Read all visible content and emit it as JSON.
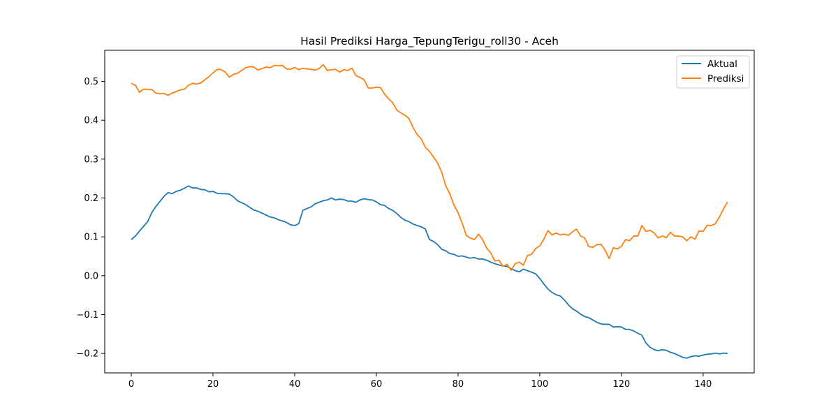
{
  "chart_data": {
    "type": "line",
    "title": "Hasil Prediksi Harga_TepungTerigu_roll30 - Aceh",
    "xlabel": "",
    "ylabel": "",
    "xlim": [
      -6.5,
      152.5
    ],
    "ylim": [
      -0.25,
      0.58
    ],
    "xticks": [
      0,
      20,
      40,
      60,
      80,
      100,
      120,
      140
    ],
    "yticks": [
      -0.2,
      -0.1,
      0.0,
      0.1,
      0.2,
      0.3,
      0.4,
      0.5
    ],
    "ytick_labels": [
      "−0.2",
      "−0.1",
      "0.0",
      "0.1",
      "0.2",
      "0.3",
      "0.4",
      "0.5"
    ],
    "grid": false,
    "legend": "top-right",
    "series": [
      {
        "name": "Aktual",
        "color": "#1f77b4",
        "values": [
          0.093,
          0.102,
          0.115,
          0.127,
          0.139,
          0.162,
          0.178,
          0.191,
          0.204,
          0.214,
          0.211,
          0.217,
          0.22,
          0.225,
          0.231,
          0.226,
          0.226,
          0.222,
          0.221,
          0.216,
          0.217,
          0.212,
          0.211,
          0.211,
          0.21,
          0.203,
          0.193,
          0.188,
          0.183,
          0.176,
          0.169,
          0.166,
          0.161,
          0.156,
          0.151,
          0.149,
          0.144,
          0.141,
          0.137,
          0.131,
          0.129,
          0.134,
          0.168,
          0.173,
          0.177,
          0.185,
          0.189,
          0.193,
          0.195,
          0.2,
          0.195,
          0.197,
          0.196,
          0.192,
          0.192,
          0.189,
          0.195,
          0.198,
          0.196,
          0.195,
          0.19,
          0.183,
          0.181,
          0.173,
          0.168,
          0.16,
          0.15,
          0.143,
          0.139,
          0.133,
          0.129,
          0.126,
          0.12,
          0.093,
          0.088,
          0.08,
          0.068,
          0.064,
          0.057,
          0.055,
          0.05,
          0.051,
          0.048,
          0.045,
          0.047,
          0.043,
          0.043,
          0.04,
          0.035,
          0.031,
          0.028,
          0.025,
          0.024,
          0.018,
          0.013,
          0.01,
          0.017,
          0.013,
          0.009,
          0.005,
          -0.007,
          -0.021,
          -0.034,
          -0.043,
          -0.049,
          -0.052,
          -0.062,
          -0.075,
          -0.085,
          -0.091,
          -0.099,
          -0.105,
          -0.108,
          -0.114,
          -0.12,
          -0.124,
          -0.125,
          -0.125,
          -0.132,
          -0.131,
          -0.132,
          -0.138,
          -0.138,
          -0.142,
          -0.148,
          -0.153,
          -0.173,
          -0.184,
          -0.19,
          -0.193,
          -0.19,
          -0.192,
          -0.197,
          -0.2,
          -0.205,
          -0.21,
          -0.212,
          -0.208,
          -0.206,
          -0.207,
          -0.204,
          -0.202,
          -0.201,
          -0.199,
          -0.201,
          -0.199,
          -0.2
        ]
      },
      {
        "name": "Prediksi",
        "color": "#ff7f0e",
        "values": [
          0.495,
          0.49,
          0.472,
          0.48,
          0.479,
          0.479,
          0.47,
          0.468,
          0.469,
          0.464,
          0.47,
          0.474,
          0.478,
          0.48,
          0.49,
          0.495,
          0.493,
          0.496,
          0.504,
          0.512,
          0.522,
          0.531,
          0.53,
          0.524,
          0.511,
          0.518,
          0.521,
          0.528,
          0.535,
          0.538,
          0.537,
          0.529,
          0.533,
          0.537,
          0.535,
          0.541,
          0.54,
          0.541,
          0.532,
          0.531,
          0.536,
          0.53,
          0.534,
          0.532,
          0.531,
          0.529,
          0.533,
          0.543,
          0.528,
          0.53,
          0.531,
          0.524,
          0.53,
          0.528,
          0.534,
          0.515,
          0.51,
          0.504,
          0.483,
          0.483,
          0.485,
          0.484,
          0.467,
          0.455,
          0.445,
          0.426,
          0.419,
          0.413,
          0.404,
          0.381,
          0.363,
          0.352,
          0.33,
          0.32,
          0.305,
          0.29,
          0.266,
          0.231,
          0.21,
          0.182,
          0.162,
          0.135,
          0.104,
          0.097,
          0.093,
          0.107,
          0.093,
          0.071,
          0.059,
          0.038,
          0.04,
          0.024,
          0.029,
          0.014,
          0.031,
          0.035,
          0.027,
          0.052,
          0.055,
          0.07,
          0.077,
          0.094,
          0.116,
          0.105,
          0.11,
          0.105,
          0.107,
          0.104,
          0.113,
          0.12,
          0.102,
          0.097,
          0.075,
          0.073,
          0.08,
          0.081,
          0.066,
          0.044,
          0.072,
          0.069,
          0.076,
          0.093,
          0.09,
          0.102,
          0.102,
          0.129,
          0.114,
          0.117,
          0.11,
          0.097,
          0.102,
          0.098,
          0.112,
          0.102,
          0.102,
          0.1,
          0.09,
          0.1,
          0.094,
          0.115,
          0.114,
          0.13,
          0.129,
          0.134,
          0.152,
          0.172,
          0.19
        ]
      }
    ]
  }
}
